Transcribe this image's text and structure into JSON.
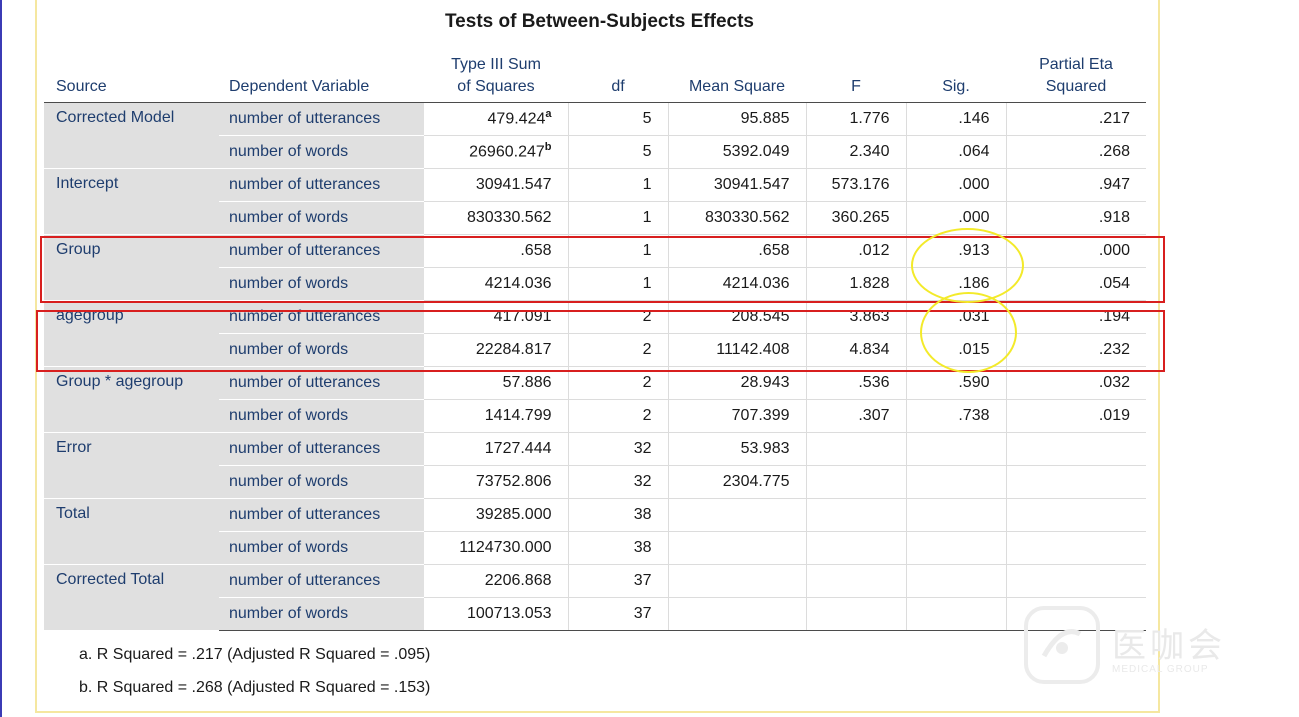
{
  "title": "Tests of Between-Subjects Effects",
  "columns": {
    "source": "Source",
    "dv": "Dependent Variable",
    "ss_line1": "Type III Sum",
    "ss_line2": "of Squares",
    "df": "df",
    "ms": "Mean Square",
    "f": "F",
    "sig": "Sig.",
    "eta_line1": "Partial Eta",
    "eta_line2": "Squared"
  },
  "rows": [
    {
      "source": "Corrected Model",
      "dv": "number of utterances",
      "ss": "479.424",
      "ss_sup": "a",
      "df": "5",
      "ms": "95.885",
      "f": "1.776",
      "sig": ".146",
      "eta": ".217"
    },
    {
      "source": "",
      "dv": "number of words",
      "ss": "26960.247",
      "ss_sup": "b",
      "df": "5",
      "ms": "5392.049",
      "f": "2.340",
      "sig": ".064",
      "eta": ".268"
    },
    {
      "source": "Intercept",
      "dv": "number of utterances",
      "ss": "30941.547",
      "ss_sup": "",
      "df": "1",
      "ms": "30941.547",
      "f": "573.176",
      "sig": ".000",
      "eta": ".947"
    },
    {
      "source": "",
      "dv": "number of words",
      "ss": "830330.562",
      "ss_sup": "",
      "df": "1",
      "ms": "830330.562",
      "f": "360.265",
      "sig": ".000",
      "eta": ".918"
    },
    {
      "source": "Group",
      "dv": "number of utterances",
      "ss": ".658",
      "ss_sup": "",
      "df": "1",
      "ms": ".658",
      "f": ".012",
      "sig": ".913",
      "eta": ".000"
    },
    {
      "source": "",
      "dv": "number of words",
      "ss": "4214.036",
      "ss_sup": "",
      "df": "1",
      "ms": "4214.036",
      "f": "1.828",
      "sig": ".186",
      "eta": ".054"
    },
    {
      "source": "agegroup",
      "dv": "number of utterances",
      "ss": "417.091",
      "ss_sup": "",
      "df": "2",
      "ms": "208.545",
      "f": "3.863",
      "sig": ".031",
      "eta": ".194"
    },
    {
      "source": "",
      "dv": "number of words",
      "ss": "22284.817",
      "ss_sup": "",
      "df": "2",
      "ms": "11142.408",
      "f": "4.834",
      "sig": ".015",
      "eta": ".232"
    },
    {
      "source": "Group * agegroup",
      "dv": "number of utterances",
      "ss": "57.886",
      "ss_sup": "",
      "df": "2",
      "ms": "28.943",
      "f": ".536",
      "sig": ".590",
      "eta": ".032"
    },
    {
      "source": "",
      "dv": "number of words",
      "ss": "1414.799",
      "ss_sup": "",
      "df": "2",
      "ms": "707.399",
      "f": ".307",
      "sig": ".738",
      "eta": ".019"
    },
    {
      "source": "Error",
      "dv": "number of utterances",
      "ss": "1727.444",
      "ss_sup": "",
      "df": "32",
      "ms": "53.983",
      "f": "",
      "sig": "",
      "eta": ""
    },
    {
      "source": "",
      "dv": "number of words",
      "ss": "73752.806",
      "ss_sup": "",
      "df": "32",
      "ms": "2304.775",
      "f": "",
      "sig": "",
      "eta": ""
    },
    {
      "source": "Total",
      "dv": "number of utterances",
      "ss": "39285.000",
      "ss_sup": "",
      "df": "38",
      "ms": "",
      "f": "",
      "sig": "",
      "eta": ""
    },
    {
      "source": "",
      "dv": "number of words",
      "ss": "1124730.000",
      "ss_sup": "",
      "df": "38",
      "ms": "",
      "f": "",
      "sig": "",
      "eta": ""
    },
    {
      "source": "Corrected Total",
      "dv": "number of utterances",
      "ss": "2206.868",
      "ss_sup": "",
      "df": "37",
      "ms": "",
      "f": "",
      "sig": "",
      "eta": ""
    },
    {
      "source": "",
      "dv": "number of words",
      "ss": "100713.053",
      "ss_sup": "",
      "df": "37",
      "ms": "",
      "f": "",
      "sig": "",
      "eta": ""
    }
  ],
  "footnotes": {
    "a": "a. R Squared = .217 (Adjusted R Squared = .095)",
    "b": "b. R Squared = .268 (Adjusted R Squared = .153)"
  },
  "colors": {
    "highlight_box": "#d81f1f",
    "highlight_oval": "#f3ea2a",
    "header_text": "#1e3d6e",
    "label_bg": "#e0e0e0",
    "frame_border": "#f5e7a0"
  },
  "watermark": {
    "text": "医咖会",
    "sub": "MEDICAL GROUP"
  }
}
